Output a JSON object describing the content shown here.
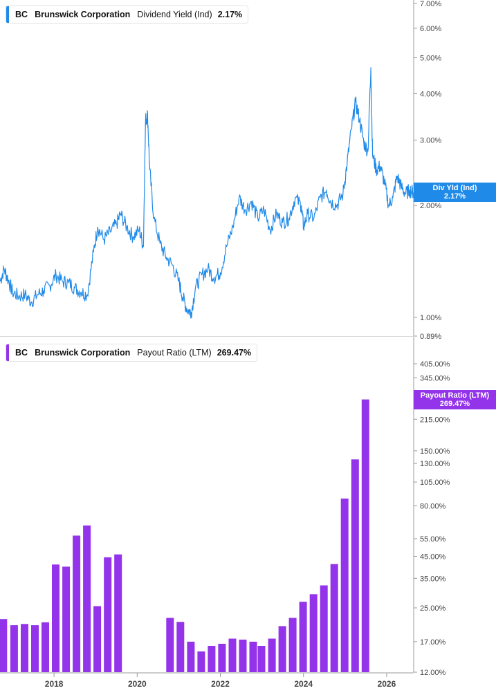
{
  "colors": {
    "yield_line": "#1f8ae8",
    "payout_bar": "#9333ea",
    "axis": "#999999",
    "tick_text": "#444444"
  },
  "top_legend": {
    "ticker": "BC",
    "company": "Brunswick Corporation",
    "metric": "Dividend Yield (Ind)",
    "value": "2.17%"
  },
  "bottom_legend": {
    "ticker": "BC",
    "company": "Brunswick Corporation",
    "metric": "Payout Ratio (LTM)",
    "value": "269.47%"
  },
  "top_tag": {
    "label": "Div Yld (Ind)",
    "value": "2.17%"
  },
  "bottom_tag": {
    "label": "Payout Ratio (LTM)",
    "value": "269.47%"
  },
  "chart_data": [
    {
      "type": "line",
      "series": [
        {
          "name": "Dividend Yield (Ind)"
        }
      ],
      "scale": "log",
      "ylim": [
        0.89,
        7.0
      ],
      "y_ticks": [
        "7.00%",
        "6.00%",
        "5.00%",
        "4.00%",
        "3.00%",
        "2.00%",
        "1.00%",
        "0.89%"
      ],
      "y_tick_values": [
        7.0,
        6.0,
        5.0,
        4.0,
        3.0,
        2.0,
        1.0,
        0.89
      ],
      "x_ticks": [
        "2018",
        "2020",
        "2022",
        "2024",
        "2026"
      ],
      "x_tick_values": [
        2018,
        2020,
        2022,
        2024,
        2026
      ],
      "xlim": [
        2016.7,
        2026.65
      ],
      "points": [
        [
          2016.7,
          1.25
        ],
        [
          2016.8,
          1.35
        ],
        [
          2016.9,
          1.26
        ],
        [
          2017.0,
          1.17
        ],
        [
          2017.15,
          1.14
        ],
        [
          2017.3,
          1.15
        ],
        [
          2017.45,
          1.1
        ],
        [
          2017.6,
          1.15
        ],
        [
          2017.75,
          1.18
        ],
        [
          2017.9,
          1.22
        ],
        [
          2018.05,
          1.3
        ],
        [
          2018.2,
          1.25
        ],
        [
          2018.35,
          1.24
        ],
        [
          2018.5,
          1.2
        ],
        [
          2018.65,
          1.17
        ],
        [
          2018.8,
          1.15
        ],
        [
          2018.95,
          1.5
        ],
        [
          2019.05,
          1.75
        ],
        [
          2019.2,
          1.62
        ],
        [
          2019.35,
          1.7
        ],
        [
          2019.5,
          1.78
        ],
        [
          2019.6,
          1.9
        ],
        [
          2019.75,
          1.75
        ],
        [
          2019.9,
          1.65
        ],
        [
          2020.05,
          1.72
        ],
        [
          2020.15,
          1.55
        ],
        [
          2020.2,
          3.4
        ],
        [
          2020.25,
          3.5
        ],
        [
          2020.3,
          2.5
        ],
        [
          2020.4,
          1.85
        ],
        [
          2020.55,
          1.58
        ],
        [
          2020.7,
          1.45
        ],
        [
          2020.85,
          1.38
        ],
        [
          2021.0,
          1.25
        ],
        [
          2021.1,
          1.13
        ],
        [
          2021.2,
          1.05
        ],
        [
          2021.3,
          1.03
        ],
        [
          2021.4,
          1.2
        ],
        [
          2021.55,
          1.3
        ],
        [
          2021.7,
          1.35
        ],
        [
          2021.85,
          1.28
        ],
        [
          2022.0,
          1.32
        ],
        [
          2022.15,
          1.55
        ],
        [
          2022.3,
          1.75
        ],
        [
          2022.45,
          2.1
        ],
        [
          2022.6,
          1.95
        ],
        [
          2022.75,
          2.05
        ],
        [
          2022.9,
          1.85
        ],
        [
          2023.05,
          1.95
        ],
        [
          2023.2,
          1.72
        ],
        [
          2023.35,
          1.9
        ],
        [
          2023.5,
          1.8
        ],
        [
          2023.65,
          1.85
        ],
        [
          2023.8,
          2.1
        ],
        [
          2023.95,
          2.0
        ],
        [
          2024.0,
          1.75
        ],
        [
          2024.1,
          1.9
        ],
        [
          2024.25,
          1.85
        ],
        [
          2024.4,
          2.1
        ],
        [
          2024.55,
          2.2
        ],
        [
          2024.65,
          2.05
        ],
        [
          2024.8,
          2.0
        ],
        [
          2024.95,
          2.15
        ],
        [
          2025.05,
          2.6
        ],
        [
          2025.15,
          3.2
        ],
        [
          2025.25,
          3.8
        ],
        [
          2025.35,
          3.4
        ],
        [
          2025.45,
          2.95
        ],
        [
          2025.55,
          2.8
        ],
        [
          2025.62,
          4.7
        ],
        [
          2025.66,
          2.75
        ],
        [
          2025.75,
          2.5
        ],
        [
          2025.85,
          2.55
        ],
        [
          2025.95,
          2.3
        ],
        [
          2026.05,
          2.0
        ],
        [
          2026.15,
          2.1
        ],
        [
          2026.25,
          2.4
        ],
        [
          2026.35,
          2.25
        ],
        [
          2026.45,
          2.15
        ],
        [
          2026.55,
          2.2
        ],
        [
          2026.65,
          2.17
        ]
      ]
    },
    {
      "type": "bar",
      "series": [
        {
          "name": "Payout Ratio (LTM)"
        }
      ],
      "scale": "log",
      "ylim": [
        12,
        405
      ],
      "y_ticks": [
        "405.00%",
        "345.00%",
        "215.00%",
        "150.00%",
        "130.00%",
        "105.00%",
        "80.00%",
        "55.00%",
        "45.00%",
        "35.00%",
        "25.00%",
        "17.00%",
        "12.00%"
      ],
      "y_tick_values": [
        405,
        345,
        215,
        150,
        130,
        105,
        80,
        55,
        45,
        35,
        25,
        17,
        12
      ],
      "x_ticks": [
        "2018",
        "2020",
        "2022",
        "2024",
        "2026"
      ],
      "x_tick_values": [
        2018,
        2020,
        2022,
        2024,
        2026
      ],
      "xlim": [
        2016.7,
        2026.65
      ],
      "bars": [
        [
          2016.78,
          22.0
        ],
        [
          2017.04,
          20.5
        ],
        [
          2017.29,
          20.8
        ],
        [
          2017.54,
          20.5
        ],
        [
          2017.79,
          21.2
        ],
        [
          2018.04,
          41.0
        ],
        [
          2018.29,
          40.0
        ],
        [
          2018.54,
          57.0
        ],
        [
          2018.79,
          64.0
        ],
        [
          2019.04,
          25.5
        ],
        [
          2019.29,
          44.5
        ],
        [
          2019.54,
          46.0
        ],
        [
          2020.79,
          22.3
        ],
        [
          2021.04,
          21.3
        ],
        [
          2021.29,
          17.0
        ],
        [
          2021.54,
          15.2
        ],
        [
          2021.79,
          16.2
        ],
        [
          2022.04,
          16.6
        ],
        [
          2022.29,
          17.6
        ],
        [
          2022.54,
          17.4
        ],
        [
          2022.79,
          17.0
        ],
        [
          2022.99,
          16.2
        ],
        [
          2023.24,
          17.6
        ],
        [
          2023.49,
          20.3
        ],
        [
          2023.74,
          22.3
        ],
        [
          2023.99,
          26.8
        ],
        [
          2024.24,
          29.2
        ],
        [
          2024.49,
          32.3
        ],
        [
          2024.74,
          41.2
        ],
        [
          2024.99,
          87.0
        ],
        [
          2025.24,
          136.0
        ],
        [
          2025.49,
          269.47
        ]
      ]
    }
  ]
}
